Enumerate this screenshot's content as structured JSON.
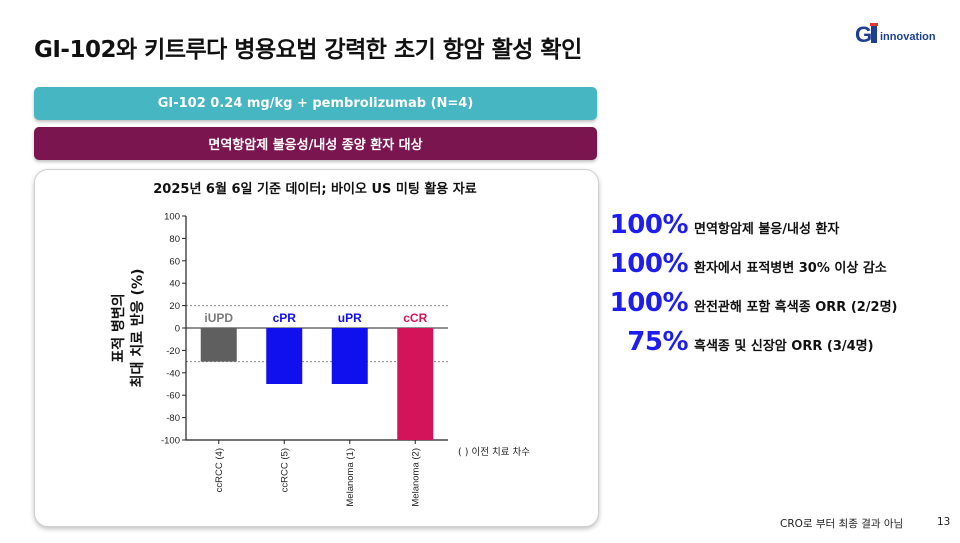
{
  "title": "GI-102와 키트루다 병용요법 강력한 초기 항암 활성 확인",
  "logo": {
    "text_g": "GI",
    "text_rest": "nnovation"
  },
  "banner_top": "GI-102 0.24 mg/kg + pembrolizumab (N=4)",
  "banner_bottom": "면역항암제 불응성/내성 종양 환자 대상",
  "chart_data": {
    "type": "bar",
    "title": "2025년 6월 6일 기준 데이터; 바이오 US 미팅 활용 자료",
    "ylabel_line1": "표적 병변의",
    "ylabel_line2": "최대 치료 반응 (%)",
    "xlabel": "",
    "ylim": [
      -100,
      100
    ],
    "yticks": [
      100,
      80,
      60,
      40,
      20,
      0,
      -20,
      -40,
      -60,
      -80,
      -100
    ],
    "reference_lines": [
      20,
      -30
    ],
    "categories": [
      "ccRCC (4)",
      "ccRCC (5)",
      "Melanoma (1)",
      "Melanoma (2)"
    ],
    "values": [
      -30,
      -50,
      -50,
      -100
    ],
    "bar_labels": [
      "iUPD",
      "cPR",
      "uPR",
      "cCR"
    ],
    "colors": [
      "#5f5f5f",
      "#1010ee",
      "#1010ee",
      "#d4145a"
    ],
    "label_colors": [
      "#7a7a7a",
      "#1010ee",
      "#1010ee",
      "#d4145a"
    ],
    "annotation": "( )  이전 치료 차수"
  },
  "stats": [
    {
      "pct": "100%",
      "text": "면역항암제 불응/내성 환자"
    },
    {
      "pct": "100%",
      "text": "환자에서 표적병변 30% 이상 감소"
    },
    {
      "pct": "100%",
      "text": "완전관해 포함 흑색종 ORR (2/2명)"
    },
    {
      "pct": "75%",
      "text": "흑색종 및 신장암 ORR (3/4명)"
    }
  ],
  "footer_note": "CRO로 부터 최종 결과 아님",
  "page_number": "13"
}
